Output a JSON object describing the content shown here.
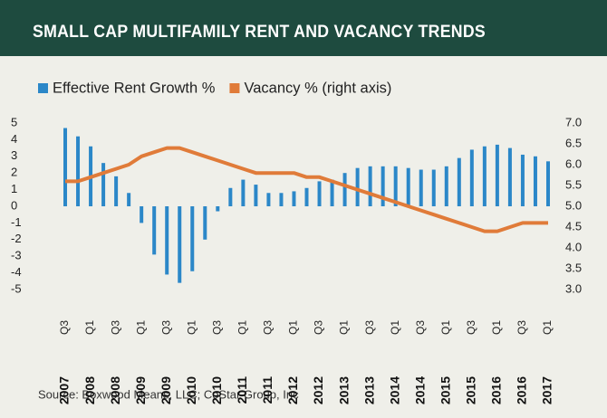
{
  "chart_data": {
    "type": "bar_line",
    "title": "SMALL CAP MULTIFAMILY RENT AND VACANCY TRENDS",
    "source": "Source: Boxwood Means, LLC; CoStar Group, Inc",
    "categories": [
      "Q3",
      null,
      "Q1",
      null,
      "Q3",
      null,
      "Q1",
      null,
      "Q3",
      null,
      "Q1",
      null,
      "Q3",
      null,
      "Q1",
      null,
      "Q3",
      null,
      "Q1",
      null,
      "Q3",
      null,
      "Q1",
      null,
      "Q3",
      null,
      "Q1",
      null,
      "Q3",
      null,
      "Q1",
      null,
      "Q3",
      null,
      "Q1",
      null,
      "Q3",
      null,
      "Q1"
    ],
    "years": [
      "2007",
      null,
      "2008",
      null,
      "2008",
      null,
      "2009",
      null,
      "2009",
      null,
      "2010",
      null,
      "2010",
      null,
      "2011",
      null,
      "2011",
      null,
      "2012",
      null,
      "2012",
      null,
      "2013",
      null,
      "2013",
      null,
      "2014",
      null,
      "2014",
      null,
      "2015",
      null,
      "2015",
      null,
      "2016",
      null,
      "2016",
      null,
      "2017"
    ],
    "series": [
      {
        "name": "Effective Rent Growth %",
        "color": "#2b87c8",
        "type": "bar",
        "values": [
          4.7,
          4.2,
          3.6,
          2.6,
          1.8,
          0.8,
          -1.0,
          -2.9,
          -4.1,
          -4.6,
          -3.9,
          -2.0,
          -0.3,
          1.1,
          1.6,
          1.3,
          0.8,
          0.8,
          0.9,
          1.1,
          1.5,
          1.6,
          2.0,
          2.3,
          2.4,
          2.4,
          2.4,
          2.3,
          2.2,
          2.2,
          2.4,
          2.9,
          3.4,
          3.6,
          3.7,
          3.5,
          3.1,
          3.0,
          2.7
        ]
      },
      {
        "name": "Vacancy % (right axis)",
        "color": "#e07b39",
        "type": "line",
        "axis": "y2",
        "values": [
          5.6,
          5.6,
          5.7,
          5.8,
          5.9,
          6.0,
          6.2,
          6.3,
          6.4,
          6.4,
          6.3,
          6.2,
          6.1,
          6.0,
          5.9,
          5.8,
          5.8,
          5.8,
          5.8,
          5.7,
          5.7,
          5.6,
          5.5,
          5.4,
          5.3,
          5.2,
          5.1,
          5.0,
          4.9,
          4.8,
          4.7,
          4.6,
          4.5,
          4.4,
          4.4,
          4.5,
          4.6,
          4.6,
          4.6
        ]
      }
    ],
    "ylim": [
      -5,
      5
    ],
    "yticks": [
      5,
      4,
      3,
      2,
      1,
      0,
      -1,
      -2,
      -3,
      -4,
      -5
    ],
    "y2lim": [
      3,
      7
    ],
    "y2ticks": [
      {
        "value": 7,
        "label": "7.0"
      },
      6.5,
      {
        "value": 6,
        "label": "6.0"
      },
      5.5,
      {
        "value": 5,
        "label": "5.0"
      },
      4.5,
      {
        "value": 4,
        "label": "4.0"
      },
      3.5,
      {
        "value": 3,
        "label": "3.0"
      }
    ],
    "legend": "top-left"
  }
}
